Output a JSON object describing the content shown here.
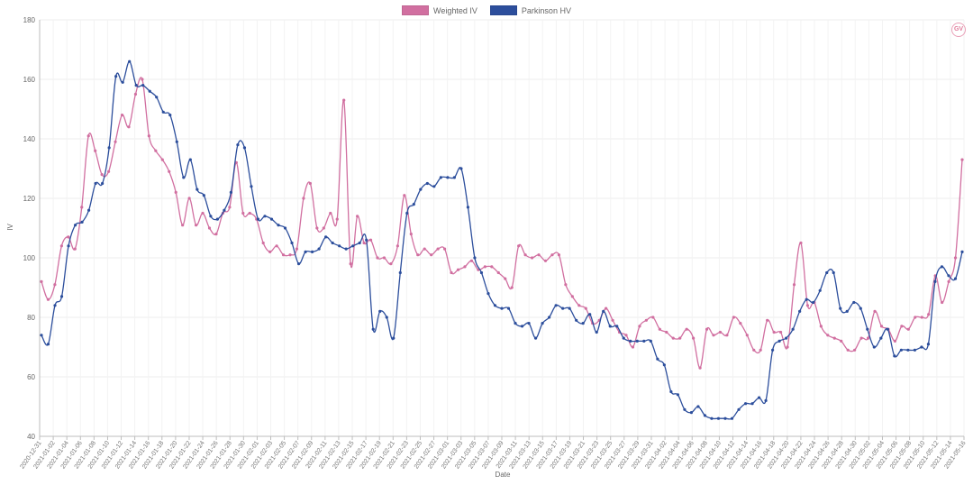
{
  "logo_text": "GV",
  "colors": {
    "weighted": "#d16fa0",
    "parkinson": "#2c4e9c",
    "grid": "#ececec",
    "axis": "#bdbdbd",
    "text": "#666666"
  },
  "chart_data": {
    "type": "line",
    "title": "",
    "xlabel": "Date",
    "ylabel": "IV",
    "ylim": [
      40,
      180
    ],
    "yticks": [
      40,
      60,
      80,
      100,
      120,
      140,
      160,
      180
    ],
    "grid": true,
    "legend_position": "top-center",
    "x_tick_labels": [
      "2020-12-31",
      "2021-01-02",
      "2021-01-04",
      "2021-01-06",
      "2021-01-08",
      "2021-01-10",
      "2021-01-12",
      "2021-01-14",
      "2021-01-16",
      "2021-01-18",
      "2021-01-20",
      "2021-01-22",
      "2021-01-24",
      "2021-01-26",
      "2021-01-28",
      "2021-01-30",
      "2021-02-01",
      "2021-02-03",
      "2021-02-05",
      "2021-02-07",
      "2021-02-09",
      "2021-02-11",
      "2021-02-13",
      "2021-02-15",
      "2021-02-17",
      "2021-02-19",
      "2021-02-21",
      "2021-02-23",
      "2021-02-25",
      "2021-02-27",
      "2021-03-01",
      "2021-03-03",
      "2021-03-05",
      "2021-03-07",
      "2021-03-09",
      "2021-03-11",
      "2021-03-13",
      "2021-03-15",
      "2021-03-17",
      "2021-03-19",
      "2021-03-21",
      "2021-03-23",
      "2021-03-25",
      "2021-03-27",
      "2021-03-29",
      "2021-03-31",
      "2021-04-02",
      "2021-04-04",
      "2021-04-06",
      "2021-04-08",
      "2021-04-10",
      "2021-04-12",
      "2021-04-14",
      "2021-04-16",
      "2021-04-18",
      "2021-04-20",
      "2021-04-22",
      "2021-04-24",
      "2021-04-26",
      "2021-04-28",
      "2021-04-30",
      "2021-05-02",
      "2021-05-04",
      "2021-05-06",
      "2021-05-08",
      "2021-05-10",
      "2021-05-12",
      "2021-05-14",
      "2021-05-16"
    ],
    "series": [
      {
        "name": "Weighted IV",
        "color": "#d16fa0",
        "values": [
          92,
          86,
          91,
          104,
          107,
          103,
          117,
          141,
          136,
          128,
          129,
          139,
          148,
          144,
          155,
          160,
          141,
          136,
          133,
          129,
          122,
          111,
          120,
          111,
          115,
          110,
          108,
          115,
          117,
          132,
          115,
          115,
          113,
          105,
          102,
          104,
          101,
          101,
          103,
          120,
          125,
          110,
          110,
          115,
          113,
          153,
          98,
          114,
          105,
          106,
          100,
          100,
          98,
          104,
          121,
          108,
          101,
          103,
          101,
          103,
          103,
          95,
          96,
          97,
          99,
          96,
          97,
          97,
          95,
          93,
          90,
          104,
          101,
          100,
          101,
          99,
          101,
          101,
          91,
          87,
          84,
          83,
          78,
          79,
          83,
          79,
          75,
          74,
          70,
          77,
          79,
          80,
          76,
          75,
          73,
          73,
          76,
          73,
          63,
          76,
          74,
          75,
          74,
          80,
          78,
          74,
          69,
          69,
          79,
          75,
          75,
          70,
          91,
          105,
          84,
          85,
          77,
          74,
          73,
          72,
          69,
          69,
          73,
          73,
          82,
          77,
          76,
          72,
          77,
          76,
          80,
          80,
          81,
          94,
          85,
          92,
          100,
          133
        ]
      },
      {
        "name": "Parkinson HV",
        "color": "#2c4e9c",
        "values": [
          74,
          71,
          84,
          87,
          104,
          111,
          112,
          116,
          125,
          125,
          137,
          161,
          159,
          166,
          158,
          158,
          156,
          154,
          149,
          148,
          139,
          127,
          133,
          123,
          121,
          114,
          113,
          116,
          122,
          138,
          137,
          124,
          113,
          114,
          113,
          111,
          110,
          105,
          98,
          102,
          102,
          103,
          107,
          105,
          104,
          103,
          104,
          105,
          106,
          76,
          82,
          80,
          73,
          95,
          115,
          118,
          123,
          125,
          124,
          127,
          127,
          127,
          130,
          117,
          100,
          95,
          88,
          84,
          83,
          83,
          78,
          77,
          78,
          73,
          78,
          80,
          84,
          83,
          83,
          79,
          78,
          81,
          75,
          82,
          77,
          77,
          73,
          72,
          72,
          72,
          72,
          66,
          64,
          55,
          54,
          49,
          48,
          50,
          47,
          46,
          46,
          46,
          46,
          49,
          51,
          51,
          53,
          52,
          69,
          72,
          73,
          76,
          82,
          86,
          85,
          89,
          95,
          95,
          83,
          82,
          85,
          83,
          76,
          70,
          73,
          76,
          67,
          69,
          69,
          69,
          70,
          71,
          92,
          97,
          94,
          93,
          102
        ]
      }
    ]
  }
}
